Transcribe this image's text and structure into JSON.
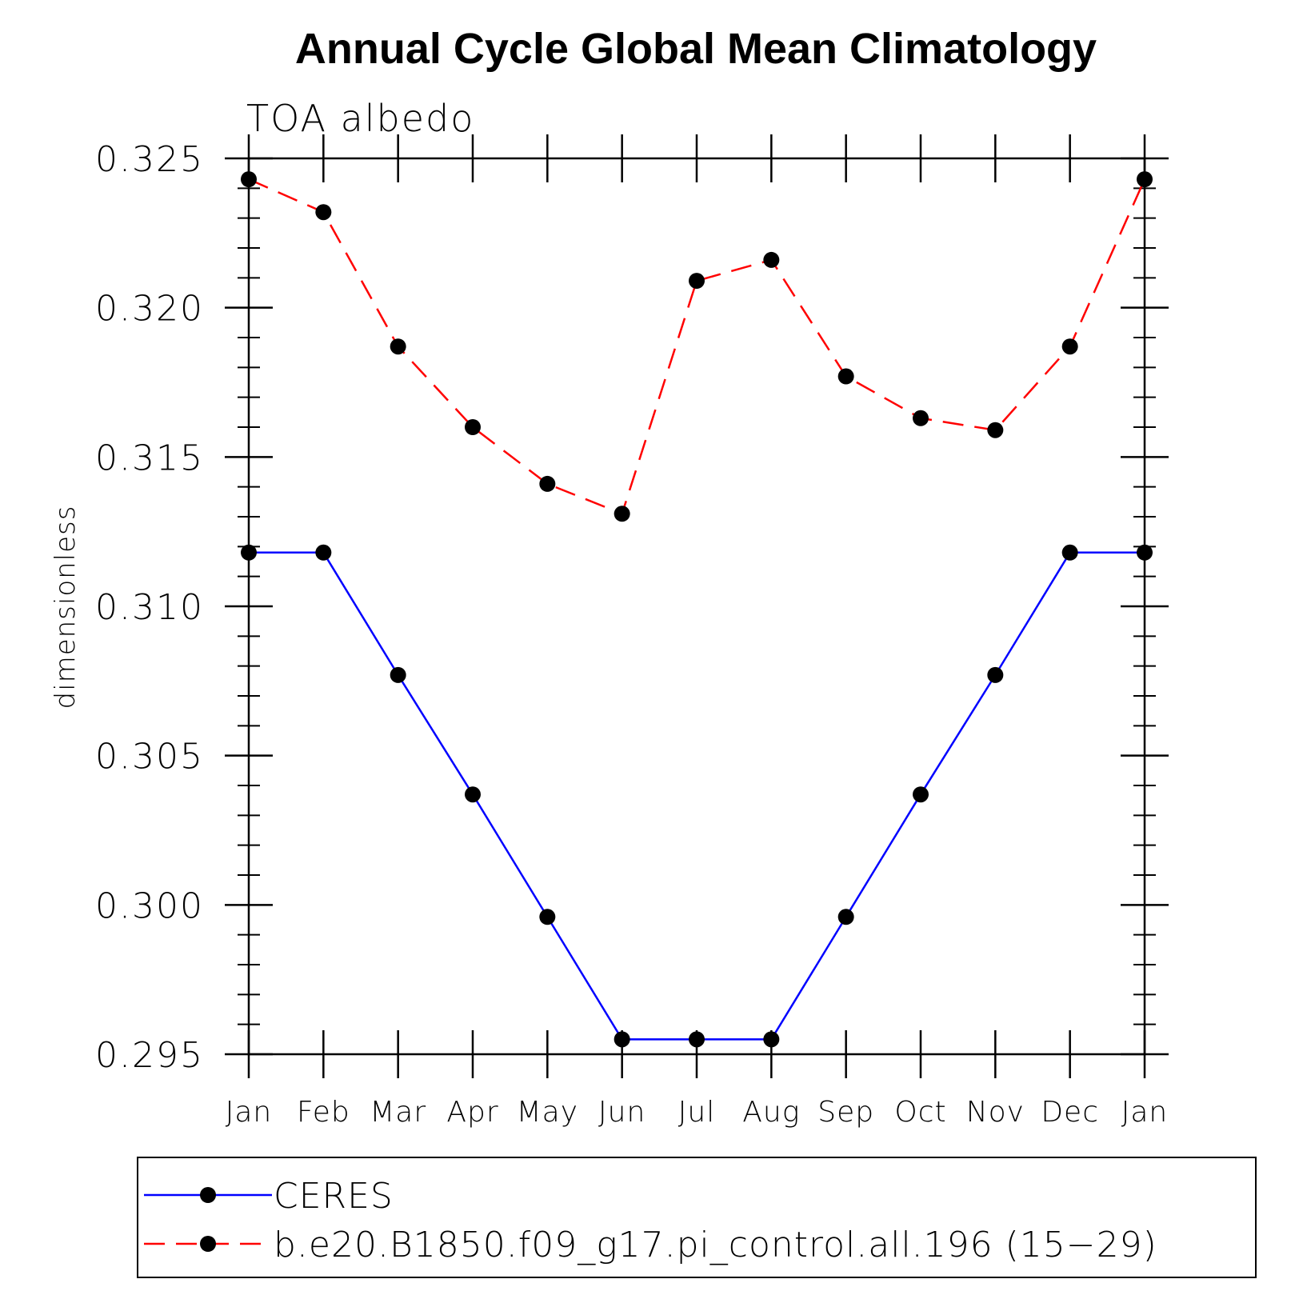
{
  "chart_data": {
    "type": "line",
    "title": "Annual Cycle Global Mean Climatology",
    "subtitle": "TOA albedo",
    "ylabel": "dimensionless",
    "xlabel": "",
    "categories": [
      "Jan",
      "Feb",
      "Mar",
      "Apr",
      "May",
      "Jun",
      "Jul",
      "Aug",
      "Sep",
      "Oct",
      "Nov",
      "Dec",
      "Jan"
    ],
    "ylim": [
      0.295,
      0.325
    ],
    "yticks": [
      "0.295",
      "0.300",
      "0.305",
      "0.310",
      "0.315",
      "0.320",
      "0.325"
    ],
    "grid": false,
    "legend_position": "bottom",
    "series": [
      {
        "name": "CERES",
        "color": "#0000ff",
        "line_style": "solid",
        "marker": "filled-circle",
        "values": [
          0.3118,
          0.3118,
          0.3077,
          0.3037,
          0.2996,
          0.2955,
          0.2955,
          0.2955,
          0.2996,
          0.3037,
          0.3077,
          0.3118,
          0.3118
        ]
      },
      {
        "name": "b.e20.B1850.f09_g17.pi_control.all.196 (15−29)",
        "color": "#ff0000",
        "line_style": "dashed",
        "marker": "filled-circle",
        "values": [
          0.3243,
          0.3232,
          0.3187,
          0.316,
          0.3141,
          0.3131,
          0.3209,
          0.3216,
          0.3177,
          0.3163,
          0.3159,
          0.3187,
          0.3243
        ]
      }
    ]
  }
}
